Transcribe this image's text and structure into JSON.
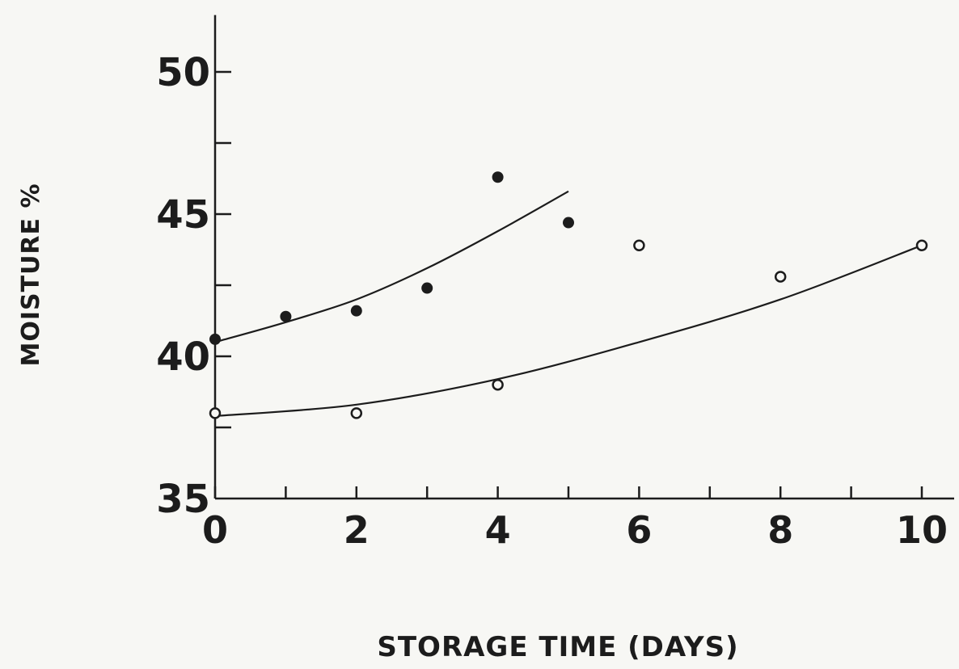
{
  "chart_data": {
    "type": "scatter",
    "title": "",
    "xlabel": "STORAGE TIME (DAYS)",
    "ylabel": "MOISTURE %",
    "xlim": [
      0,
      10
    ],
    "ylim": [
      35,
      52
    ],
    "x_ticks": [
      0,
      1,
      2,
      3,
      4,
      5,
      6,
      7,
      8,
      9,
      10
    ],
    "x_tick_labels": [
      "0",
      "2",
      "4",
      "6",
      "8",
      "10"
    ],
    "x_tick_label_values": [
      0,
      2,
      4,
      6,
      8,
      10
    ],
    "y_ticks": [
      37.5,
      40,
      42.5,
      45,
      47.5,
      50
    ],
    "y_tick_labels": [
      "35",
      "40",
      "45",
      "50"
    ],
    "y_tick_label_values": [
      35,
      40,
      45,
      50
    ],
    "grid": false,
    "legend": "none",
    "series": [
      {
        "marker": "filled-circle",
        "points": [
          [
            0,
            40.6
          ],
          [
            1,
            41.4
          ],
          [
            2,
            41.6
          ],
          [
            3,
            42.4
          ],
          [
            4,
            46.3
          ],
          [
            5,
            44.7
          ]
        ],
        "fit": [
          [
            0,
            40.5
          ],
          [
            1,
            41.2
          ],
          [
            2,
            42.0
          ],
          [
            3,
            43.1
          ],
          [
            4,
            44.4
          ],
          [
            5,
            45.8
          ]
        ]
      },
      {
        "marker": "open-circle",
        "points": [
          [
            0,
            38.0
          ],
          [
            2,
            38.0
          ],
          [
            4,
            39.0
          ],
          [
            6,
            43.9
          ],
          [
            8,
            42.8
          ],
          [
            10,
            43.9
          ]
        ],
        "fit": [
          [
            0,
            37.9
          ],
          [
            2,
            38.3
          ],
          [
            4,
            39.2
          ],
          [
            6,
            40.5
          ],
          [
            8,
            42.0
          ],
          [
            10,
            43.9
          ]
        ]
      }
    ]
  }
}
